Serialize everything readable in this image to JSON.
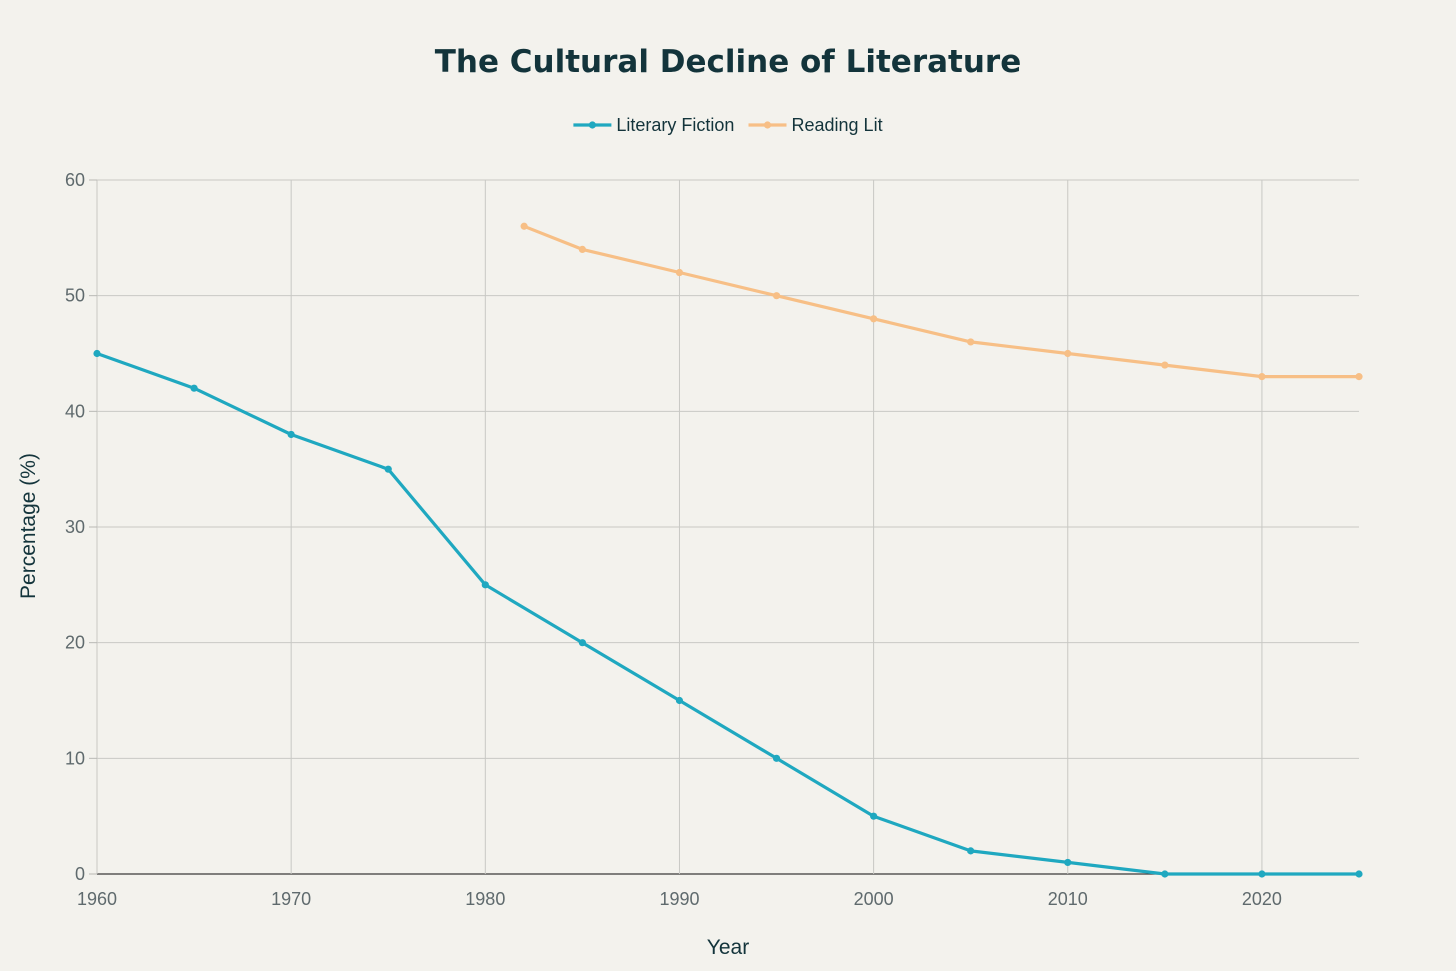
{
  "chart_data": {
    "type": "line",
    "title": "The Cultural Decline of Literature",
    "xlabel": "Year",
    "ylabel": "Percentage (%)",
    "xlim": [
      1960,
      2025
    ],
    "ylim": [
      0,
      60
    ],
    "x_ticks": [
      1960,
      1970,
      1980,
      1990,
      2000,
      2010,
      2020
    ],
    "y_ticks": [
      0,
      10,
      20,
      30,
      40,
      50,
      60
    ],
    "grid": true,
    "legend_position": "top-center",
    "series": [
      {
        "name": "Literary Fiction",
        "color": "#1fa8c0",
        "x": [
          1960,
          1965,
          1970,
          1975,
          1980,
          1985,
          1990,
          1995,
          2000,
          2005,
          2010,
          2015,
          2020,
          2025
        ],
        "y": [
          45,
          42,
          38,
          35,
          25,
          20,
          15,
          10,
          5,
          2,
          1,
          0,
          0,
          0
        ]
      },
      {
        "name": "Reading Lit",
        "color": "#f7bf86",
        "x": [
          1982,
          1985,
          1990,
          1995,
          2000,
          2005,
          2010,
          2015,
          2020,
          2025
        ],
        "y": [
          56,
          54,
          52,
          50,
          48,
          46,
          45,
          44,
          43,
          43
        ]
      }
    ]
  }
}
